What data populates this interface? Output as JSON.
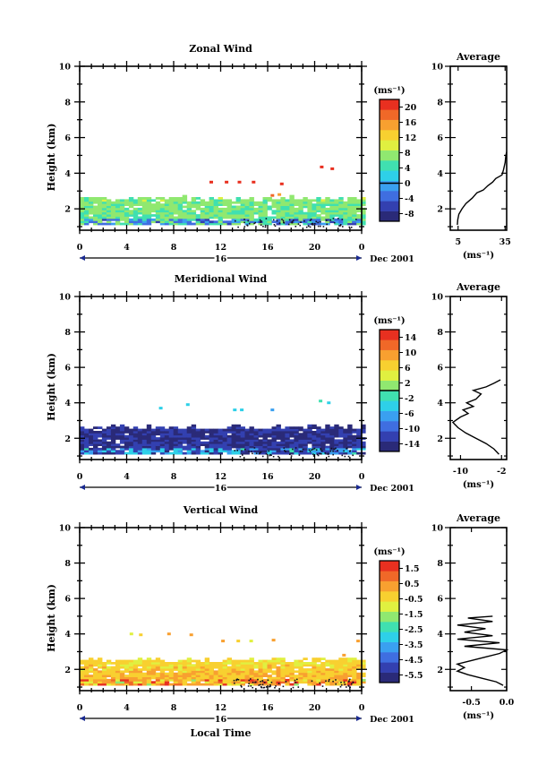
{
  "figure": {
    "date_label": "Dec 2001",
    "day_label": "16",
    "shared_xlabel": "Local Time"
  },
  "chart_data": [
    {
      "type": "heatmap",
      "title": "Zonal Wind",
      "ylabel": "Height (km)",
      "xlabel": "Local Time",
      "x_ticks": [
        "0",
        "4",
        "8",
        "12",
        "16",
        "20",
        "0"
      ],
      "xlim": [
        0,
        24
      ],
      "y_ticks": [
        "2",
        "4",
        "6",
        "8",
        "10"
      ],
      "ylim": [
        0.8,
        10
      ],
      "colorbar": {
        "unit": "(ms⁻¹)",
        "tick_labels": [
          "20",
          "16",
          "12",
          "8",
          "4",
          "0",
          "-4",
          "-8"
        ],
        "range": [
          -10,
          22
        ],
        "marked_level": 0,
        "colors": [
          "#2a2a78",
          "#3340b0",
          "#3f6ee0",
          "#3aa0f0",
          "#2ed0e8",
          "#40e0b0",
          "#90e870",
          "#e0f040",
          "#f8d030",
          "#f8a030",
          "#f06828",
          "#e83020"
        ]
      },
      "main_field": {
        "low": 1.1,
        "high": 2.55,
        "base_value": 6,
        "top_value": 7,
        "cold_bottom_value": -3
      },
      "sparse_points": [
        {
          "t": 11.2,
          "h": 3.5,
          "v": 20
        },
        {
          "t": 12.5,
          "h": 3.5,
          "v": 20
        },
        {
          "t": 13.6,
          "h": 3.5,
          "v": 21
        },
        {
          "t": 14.8,
          "h": 3.5,
          "v": 20
        },
        {
          "t": 17.2,
          "h": 3.4,
          "v": 20
        },
        {
          "t": 20.6,
          "h": 4.35,
          "v": 21
        },
        {
          "t": 21.5,
          "h": 4.25,
          "v": 20
        },
        {
          "t": 17.0,
          "h": 2.8,
          "v": 16
        },
        {
          "t": 16.4,
          "h": 2.75,
          "v": 17
        }
      ],
      "average_panel": {
        "title": "Average",
        "xlabel": "(ms⁻¹)",
        "x_ticks": [
          "5",
          "35"
        ],
        "xlim": [
          0,
          36
        ],
        "profile": [
          [
            4.5,
            1.1
          ],
          [
            4.8,
            1.4
          ],
          [
            5.5,
            1.7
          ],
          [
            7.5,
            2.0
          ],
          [
            10,
            2.3
          ],
          [
            14,
            2.6
          ],
          [
            17,
            2.9
          ],
          [
            21,
            3.05
          ],
          [
            24,
            3.3
          ],
          [
            27,
            3.5
          ],
          [
            29,
            3.7
          ],
          [
            31,
            3.8
          ],
          [
            33,
            3.9
          ],
          [
            34,
            4.2
          ],
          [
            35,
            4.6
          ],
          [
            35.5,
            5.0
          ],
          [
            36,
            5.2
          ]
        ]
      }
    },
    {
      "type": "heatmap",
      "title": "Meridional Wind",
      "ylabel": "Height (km)",
      "xlabel": "Local Time",
      "x_ticks": [
        "0",
        "4",
        "8",
        "12",
        "16",
        "20",
        "0"
      ],
      "xlim": [
        0,
        24
      ],
      "y_ticks": [
        "2",
        "4",
        "6",
        "8",
        "10"
      ],
      "ylim": [
        0.8,
        10
      ],
      "colorbar": {
        "unit": "(ms⁻¹)",
        "tick_labels": [
          "14",
          "10",
          "6",
          "2",
          "-2",
          "-6",
          "-10",
          "-14"
        ],
        "range": [
          -16,
          16
        ],
        "marked_level": 0,
        "colors": [
          "#2a2a78",
          "#3340b0",
          "#3f6ee0",
          "#3aa0f0",
          "#2ed0e8",
          "#40e0b0",
          "#90e870",
          "#e0f040",
          "#f8d030",
          "#f8a030",
          "#f06828",
          "#e83020"
        ]
      },
      "main_field": {
        "low": 1.1,
        "high": 2.6,
        "base_value": -13,
        "top_value": -14,
        "cold_bottom_value": -5
      },
      "sparse_points": [
        {
          "t": 6.9,
          "h": 3.7,
          "v": -4
        },
        {
          "t": 9.2,
          "h": 3.9,
          "v": -3
        },
        {
          "t": 13.2,
          "h": 3.6,
          "v": -5
        },
        {
          "t": 13.8,
          "h": 3.6,
          "v": -5
        },
        {
          "t": 16.4,
          "h": 3.6,
          "v": -6
        },
        {
          "t": 20.5,
          "h": 4.1,
          "v": -2
        },
        {
          "t": 21.2,
          "h": 4.0,
          "v": -4
        }
      ],
      "average_panel": {
        "title": "Average",
        "xlabel": "(ms⁻¹)",
        "x_ticks": [
          "-10",
          "-2"
        ],
        "xlim": [
          -12,
          -1
        ],
        "profile": [
          [
            -2.5,
            1.1
          ],
          [
            -3.5,
            1.4
          ],
          [
            -5,
            1.7
          ],
          [
            -7,
            2.0
          ],
          [
            -9,
            2.3
          ],
          [
            -10.5,
            2.6
          ],
          [
            -11.5,
            2.9
          ],
          [
            -10,
            3.2
          ],
          [
            -8.5,
            3.4
          ],
          [
            -9.5,
            3.6
          ],
          [
            -7.5,
            3.8
          ],
          [
            -8.8,
            4.0
          ],
          [
            -7,
            4.2
          ],
          [
            -6,
            4.5
          ],
          [
            -7.5,
            4.7
          ],
          [
            -5,
            4.9
          ],
          [
            -3.5,
            5.1
          ],
          [
            -2.2,
            5.3
          ]
        ]
      }
    },
    {
      "type": "heatmap",
      "title": "Vertical Wind",
      "ylabel": "Height (km)",
      "xlabel": "Local Time",
      "x_ticks": [
        "0",
        "4",
        "8",
        "12",
        "16",
        "20",
        "0"
      ],
      "xlim": [
        0,
        24
      ],
      "y_ticks": [
        "2",
        "4",
        "6",
        "8",
        "10"
      ],
      "ylim": [
        0.8,
        10
      ],
      "colorbar": {
        "unit": "(ms⁻¹)",
        "tick_labels": [
          "1.5",
          "0.5",
          "-0.5",
          "-1.5",
          "-2.5",
          "-3.5",
          "-4.5",
          "-5.5"
        ],
        "range": [
          -6,
          2
        ],
        "marked_level": null,
        "colors": [
          "#2a2a78",
          "#3340b0",
          "#3f6ee0",
          "#3aa0f0",
          "#2ed0e8",
          "#40e0b0",
          "#90e870",
          "#e0f040",
          "#f8d030",
          "#f8a030",
          "#f06828",
          "#e83020"
        ]
      },
      "main_field": {
        "low": 1.1,
        "high": 2.5,
        "base_value": 0.2,
        "top_value": -0.6,
        "cold_bottom_value": 0.6
      },
      "sparse_points": [
        {
          "t": 4.4,
          "h": 4.0,
          "v": -0.8
        },
        {
          "t": 5.2,
          "h": 3.95,
          "v": -0.4
        },
        {
          "t": 7.6,
          "h": 4.0,
          "v": 0.1
        },
        {
          "t": 9.5,
          "h": 3.95,
          "v": 0.2
        },
        {
          "t": 12.2,
          "h": 3.6,
          "v": 0.0
        },
        {
          "t": 13.5,
          "h": 3.6,
          "v": -0.5
        },
        {
          "t": 14.6,
          "h": 3.6,
          "v": -0.7
        },
        {
          "t": 16.5,
          "h": 3.65,
          "v": 0.2
        },
        {
          "t": 23.7,
          "h": 3.6,
          "v": 0.5
        },
        {
          "t": 22.5,
          "h": 2.8,
          "v": 0.2
        }
      ],
      "average_panel": {
        "title": "Average",
        "xlabel": "(ms⁻¹)",
        "x_ticks": [
          "-0.5",
          "0.0"
        ],
        "xlim": [
          -0.8,
          0.0
        ],
        "profile": [
          [
            -0.05,
            1.1
          ],
          [
            -0.15,
            1.3
          ],
          [
            -0.35,
            1.5
          ],
          [
            -0.55,
            1.7
          ],
          [
            -0.7,
            1.9
          ],
          [
            -0.6,
            2.1
          ],
          [
            -0.7,
            2.3
          ],
          [
            -0.5,
            2.5
          ],
          [
            -0.3,
            2.7
          ],
          [
            -0.1,
            2.9
          ],
          [
            0.0,
            3.1
          ],
          [
            -0.6,
            3.3
          ],
          [
            -0.1,
            3.5
          ],
          [
            -0.7,
            3.7
          ],
          [
            -0.2,
            3.9
          ],
          [
            -0.6,
            4.1
          ],
          [
            -0.3,
            4.3
          ],
          [
            -0.7,
            4.5
          ],
          [
            -0.2,
            4.7
          ],
          [
            -0.55,
            4.9
          ],
          [
            -0.2,
            5.0
          ]
        ]
      }
    }
  ]
}
